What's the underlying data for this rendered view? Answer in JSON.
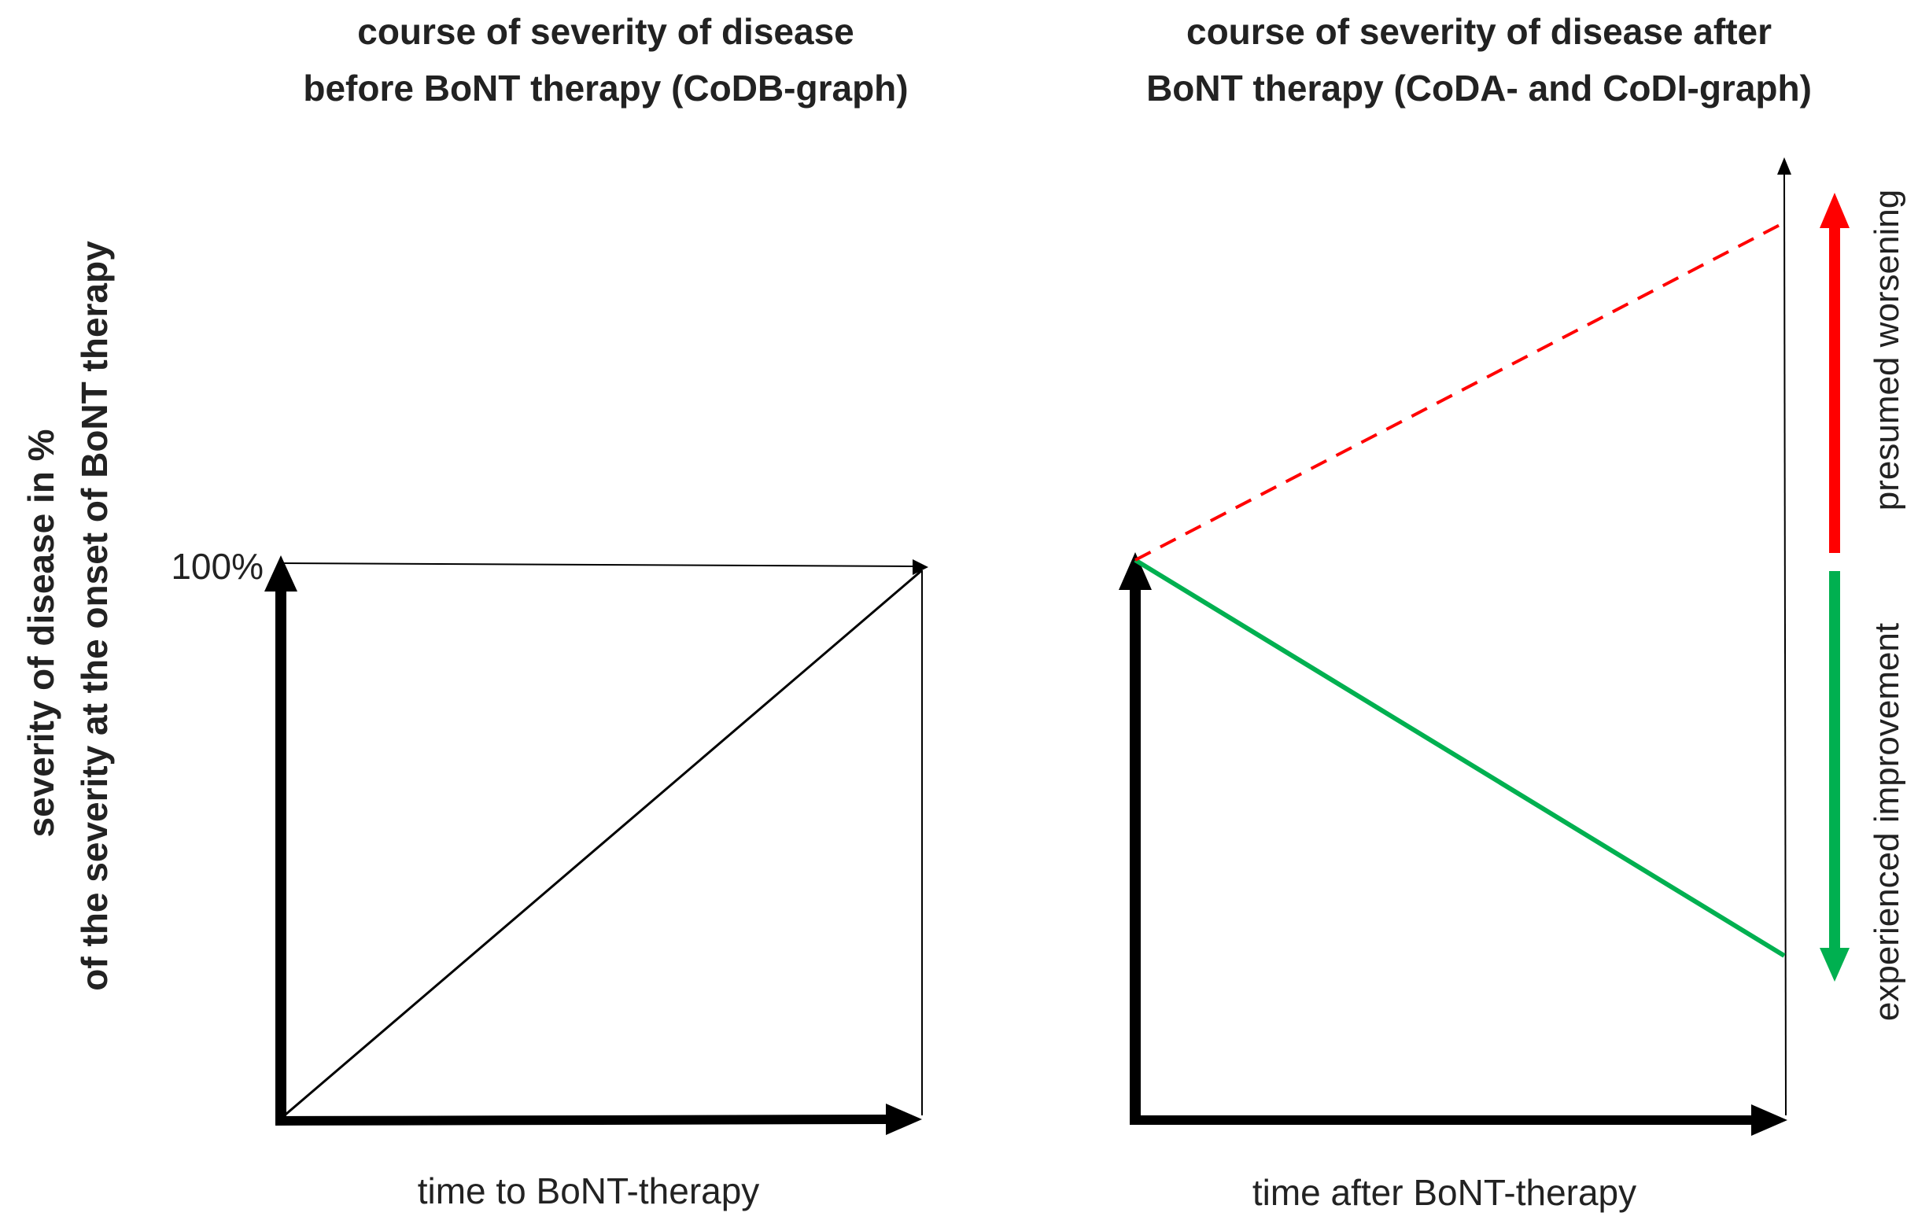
{
  "left_panel": {
    "title_line1": "course of severity of disease",
    "title_line2": "before BoNT therapy (CoDB-graph)",
    "x_label": "time to BoNT-therapy",
    "tick_100": "100%"
  },
  "right_panel": {
    "title_line1": "course of severity of disease after",
    "title_line2": "BoNT therapy (CoDA- and CoDI-graph)",
    "x_label": "time after BoNT-therapy",
    "label_improvement": "experienced improvement",
    "label_worsening": "presumed worsening"
  },
  "y_axis": {
    "line1": "severity of disease in %",
    "line2": "of  the severity at the onset of  BoNT therapy"
  },
  "colors": {
    "axis": "#000000",
    "improvement": "#00b050",
    "worsening": "#ff0000"
  }
}
